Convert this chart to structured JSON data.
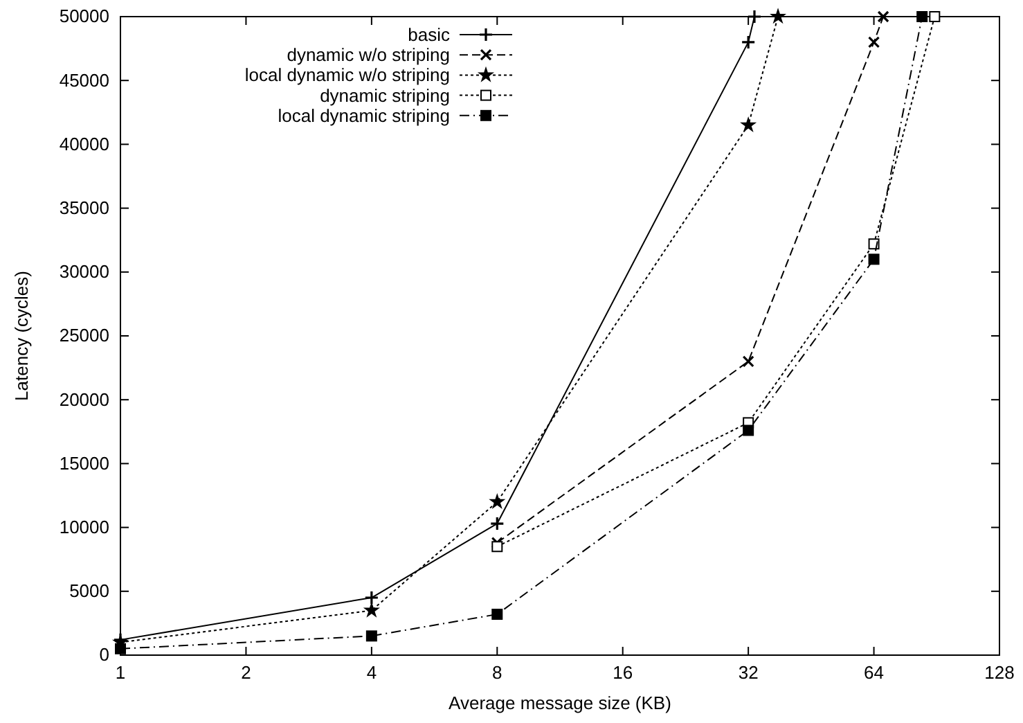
{
  "chart_data": {
    "type": "line",
    "xlabel": "Average message size (KB)",
    "ylabel": "Latency (cycles)",
    "log": "x",
    "xlim": [
      1,
      128
    ],
    "xticks": [
      1,
      2,
      4,
      8,
      16,
      32,
      64,
      128
    ],
    "ylim": [
      0,
      50000
    ],
    "yticks": [
      0,
      5000,
      10000,
      15000,
      20000,
      25000,
      30000,
      35000,
      40000,
      45000,
      50000
    ],
    "grid": false,
    "legend": "top",
    "series": [
      {
        "name": "basic",
        "color": "#000000",
        "x": [
          1,
          4,
          8,
          32,
          33.1
        ],
        "values": [
          1200,
          4500,
          10300,
          48000,
          50000
        ],
        "marker": "plus",
        "line_style": "solid"
      },
      {
        "name": "dynamic w/o striping",
        "color": "#000000",
        "x": [
          8,
          32,
          64,
          67.4
        ],
        "values": [
          8800,
          23000,
          48000,
          50000
        ],
        "marker": "cross",
        "line_style": "dashed"
      },
      {
        "name": "local dynamic w/o striping",
        "color": "#000000",
        "x": [
          1,
          4,
          8,
          32,
          37.7
        ],
        "values": [
          1000,
          3500,
          12000,
          41500,
          50000
        ],
        "marker": "star",
        "line_style": "dotted"
      },
      {
        "name": "dynamic striping",
        "color": "#000000",
        "x": [
          8,
          32,
          64,
          89.5
        ],
        "values": [
          8500,
          18200,
          32200,
          50000
        ],
        "marker": "square",
        "line_style": "dotted"
      },
      {
        "name": "local dynamic striping",
        "color": "#000000",
        "x": [
          1,
          4,
          8,
          32,
          64,
          83.5
        ],
        "values": [
          500,
          1500,
          3200,
          17600,
          31000,
          50000
        ],
        "marker": "square_filled",
        "line_style": "dashdot"
      }
    ]
  }
}
